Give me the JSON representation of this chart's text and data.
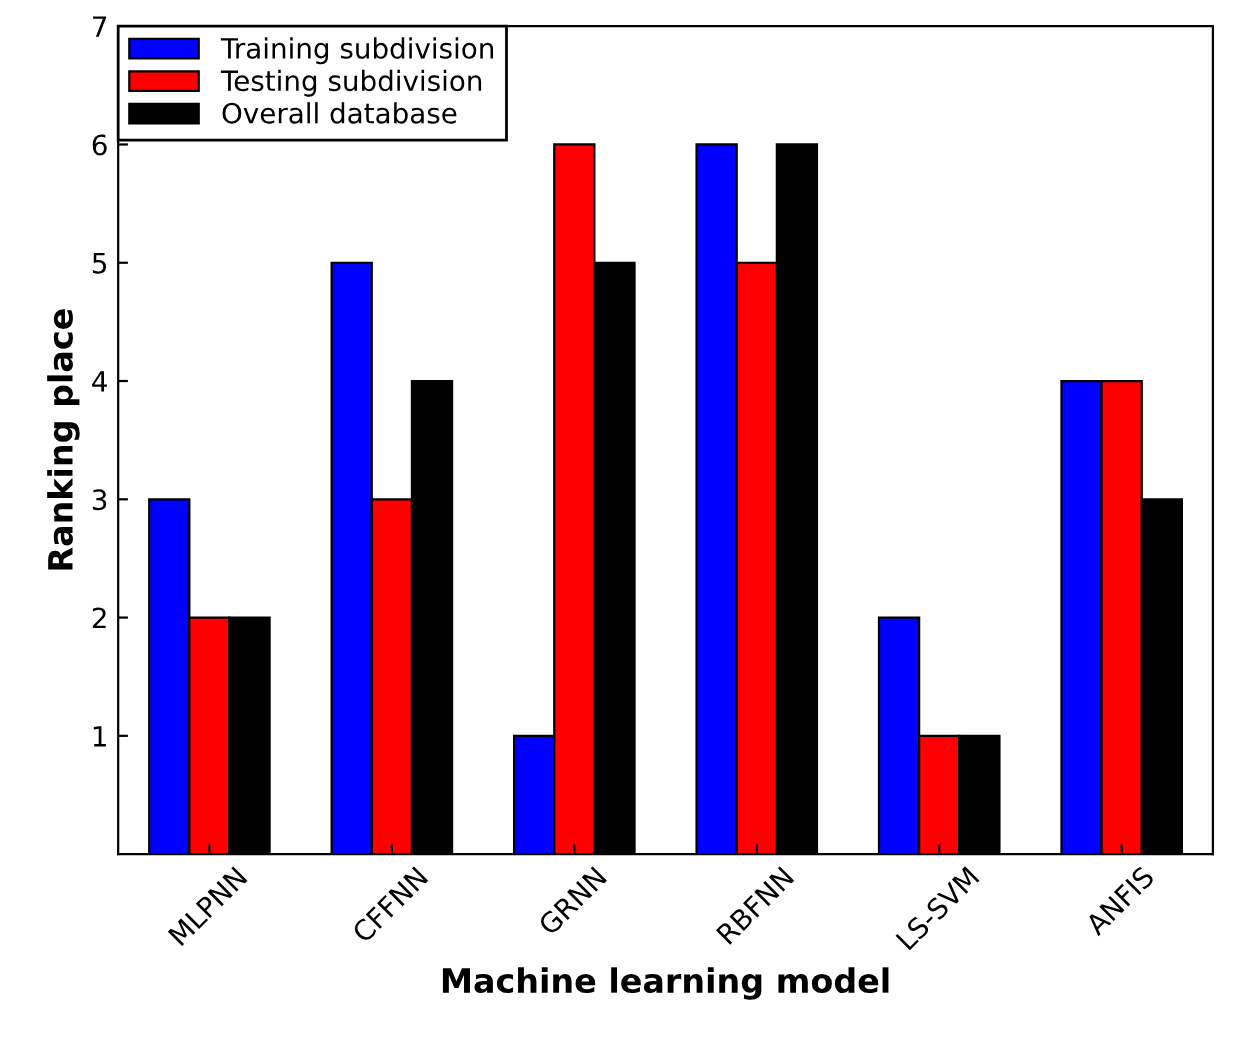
{
  "chart_data": {
    "type": "bar",
    "xlabel": "Machine learning model",
    "ylabel": "Ranking place",
    "categories": [
      "MLPNN",
      "CFFNN",
      "GRNN",
      "RBFNN",
      "LS-SVM",
      "ANFIS"
    ],
    "series": [
      {
        "name": "Training subdivision",
        "color": "#0000ff",
        "values": [
          3,
          5,
          1,
          6,
          2,
          4
        ]
      },
      {
        "name": "Testing subdivision",
        "color": "#ff0000",
        "values": [
          2,
          3,
          6,
          5,
          1,
          4
        ]
      },
      {
        "name": "Overall database",
        "color": "#000000",
        "values": [
          2,
          4,
          5,
          6,
          1,
          3
        ]
      }
    ],
    "ylim": [
      0,
      7
    ],
    "yticks": [
      1,
      2,
      3,
      4,
      5,
      6,
      7
    ],
    "grid": false,
    "legend": "top left"
  }
}
